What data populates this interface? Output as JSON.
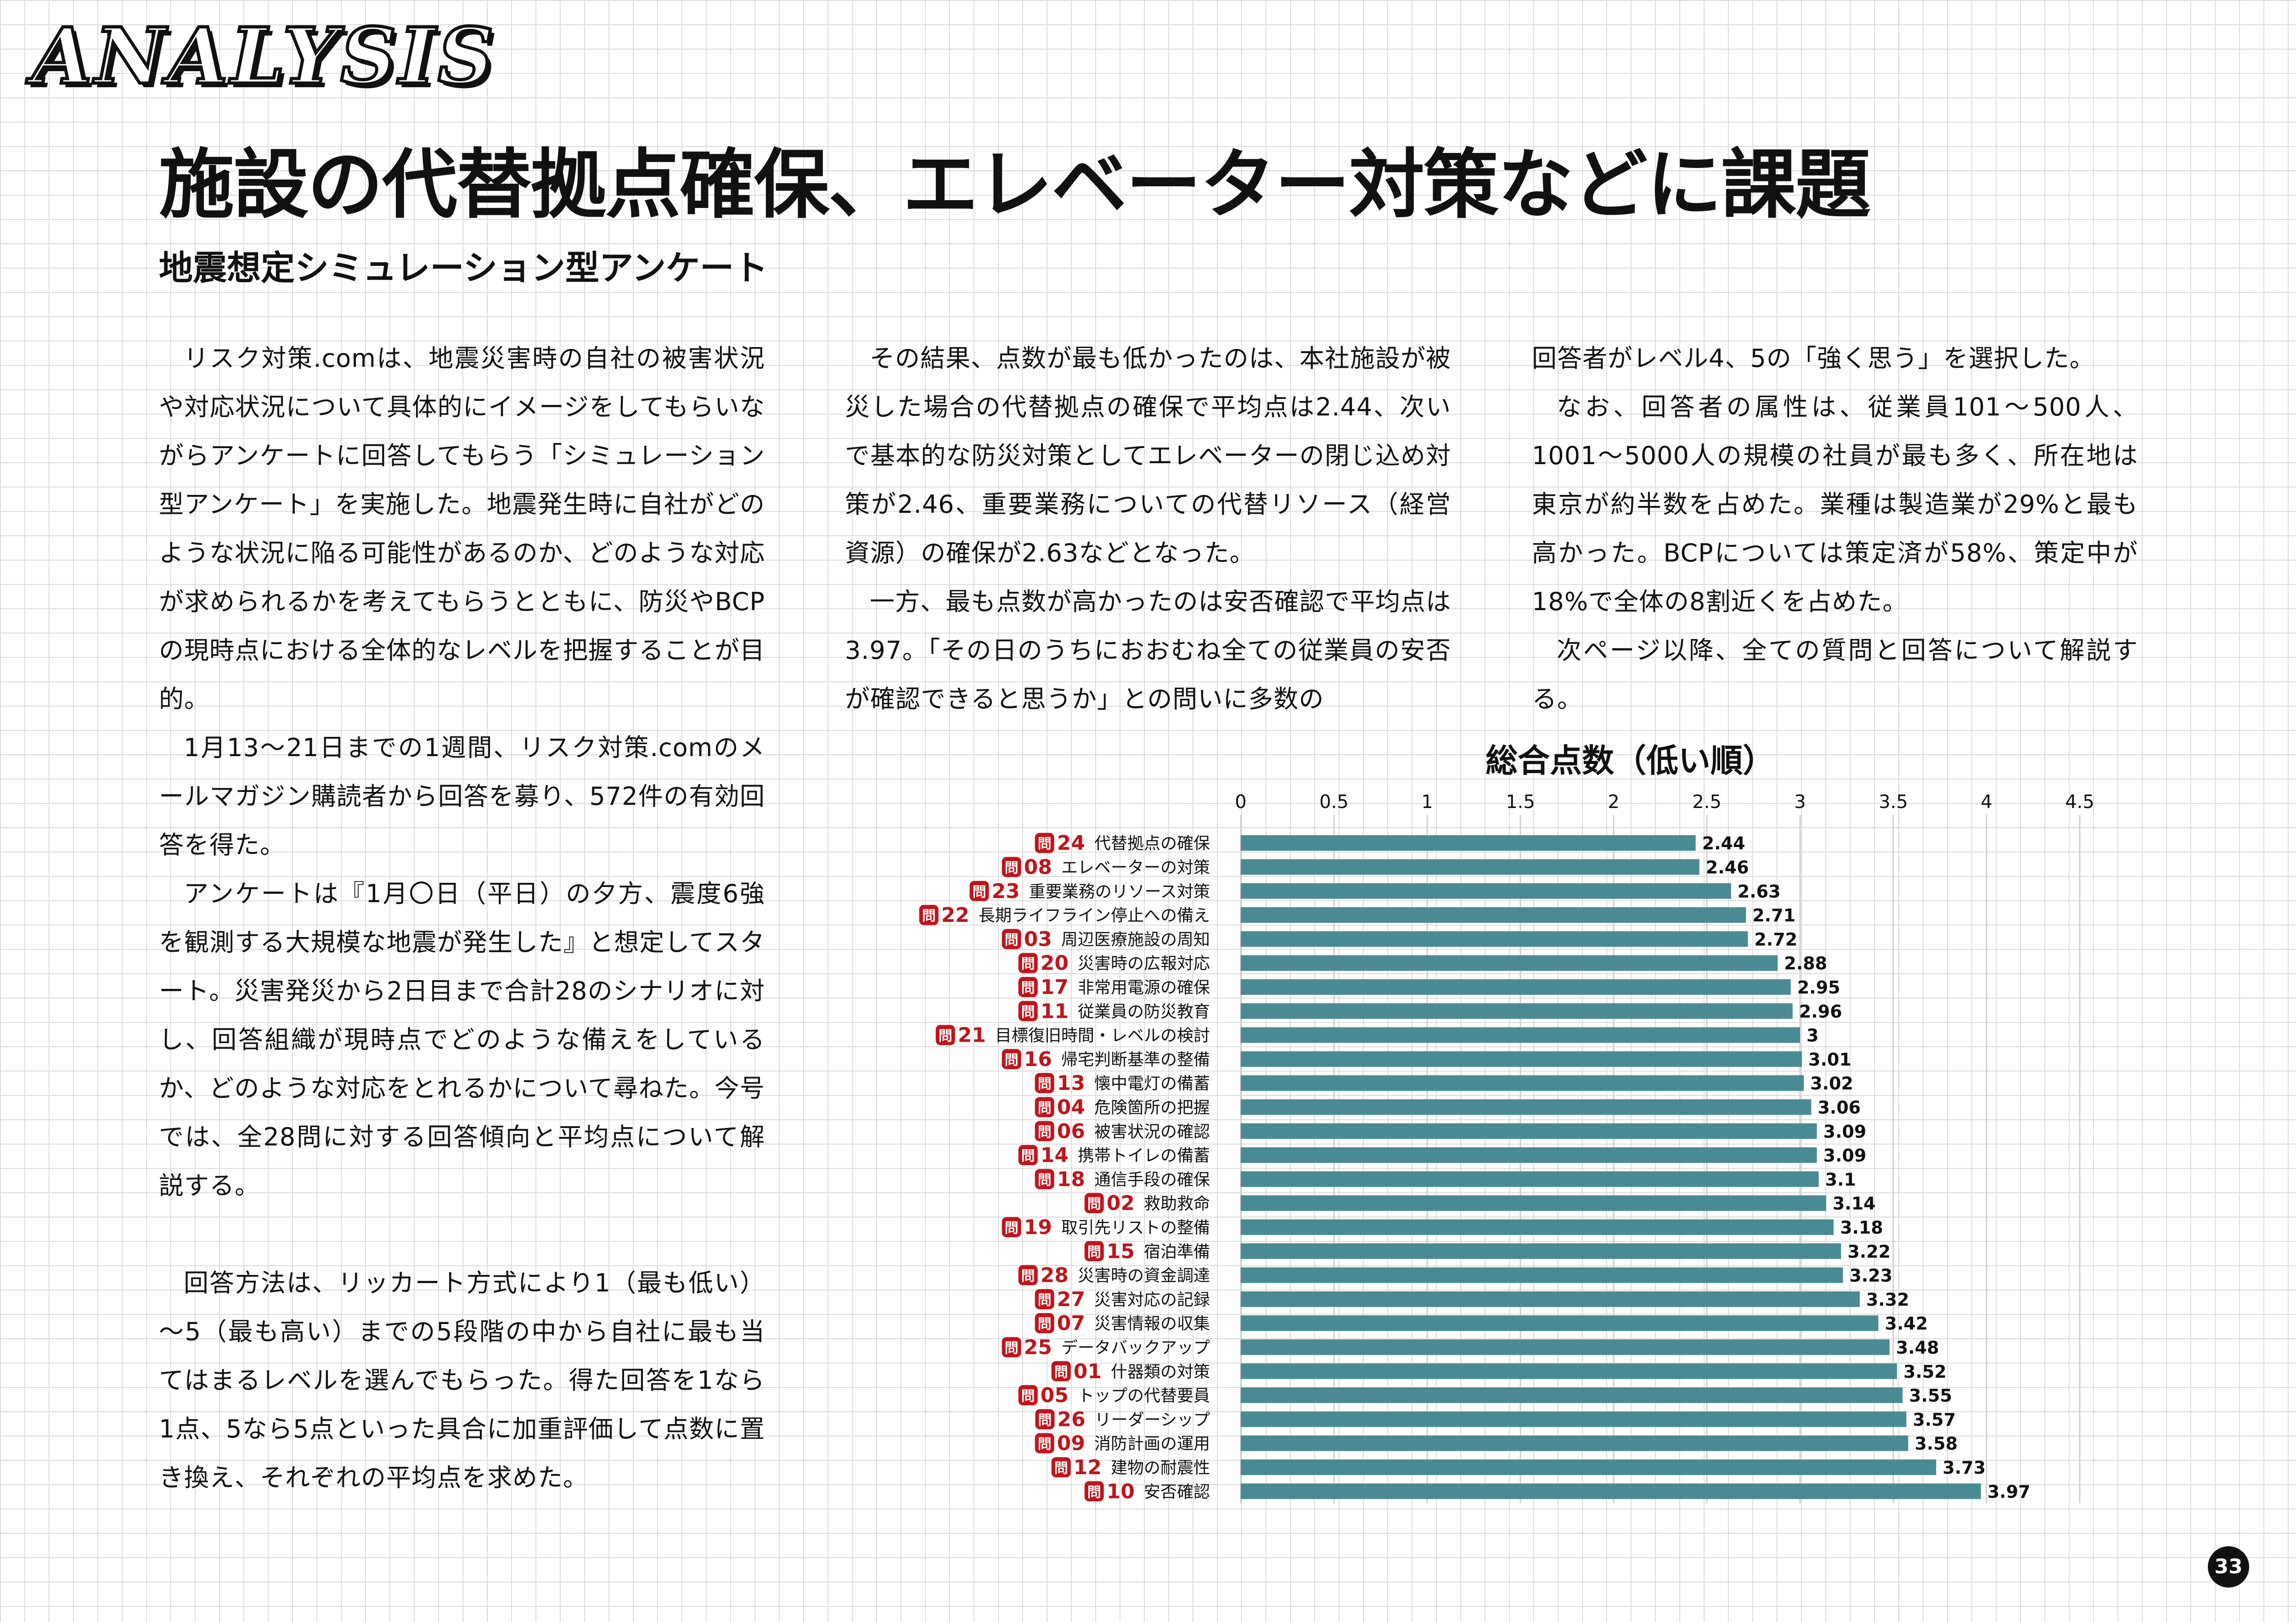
{
  "section_label": "ANALYSIS",
  "headline": "施設の代替拠点確保、エレベーター対策などに課題",
  "subheadline": "地震想定シミュレーション型アンケート",
  "body": {
    "col1": [
      "リスク対策.comは、地震災害時の自社の被害状況や対応状況について具体的にイメージをしてもらいながらアンケートに回答してもらう「シミュレーション型アンケート」を実施した。地震発生時に自社がどのような状況に陥る可能性があるのか、どのような対応が求められるかを考えてもらうとともに、防災やBCPの現時点における全体的なレベルを把握することが目的。",
      "1月13～21日までの1週間、リスク対策.comのメールマガジン購読者から回答を募り、572件の有効回答を得た。",
      "アンケートは『1月〇日（平日）の夕方、震度6強を観測する大規模な地震が発生した』と想定してスタート。災害発災から2日目まで合計28のシナリオに対し、回答組織が現時点でどのような備えをしているか、どのような対応をとれるかについて尋ねた。今号では、全28問に対する回答傾向と平均点について解説する。",
      "回答方法は、リッカート方式により1（最も低い）～5（最も高い）までの5段階の中から自社に最も当てはまるレベルを選んでもらった。得た回答を1なら1点、5なら5点といった具合に加重評価して点数に置き換え、それぞれの平均点を求めた。"
    ],
    "col2": [
      "その結果、点数が最も低かったのは、本社施設が被災した場合の代替拠点の確保で平均点は2.44、次いで基本的な防災対策としてエレベーターの閉じ込め対策が2.46、重要業務についての代替リソース（経営資源）の確保が2.63などとなった。",
      "一方、最も点数が高かったのは安否確認で平均点は3.97。「その日のうちにおおむね全ての従業員の安否が確認できると思うか」との問いに多数の"
    ],
    "col3": [
      "回答者がレベル4、5の「強く思う」を選択した。",
      "なお、回答者の属性は、従業員101～500人、1001～5000人の規模の社員が最も多く、所在地は東京が約半数を占めた。業種は製造業が29%と最も高かった。BCPについては策定済が58%、策定中が18%で全体の8割近くを占めた。",
      "次ページ以降、全ての質問と回答について解説する。"
    ]
  },
  "chart_data": {
    "type": "bar",
    "orientation": "horizontal",
    "title": "総合点数（低い順）",
    "xlim": [
      0,
      4.5
    ],
    "ticks": [
      "0",
      "0.5",
      "1",
      "1.5",
      "2",
      "2.5",
      "3",
      "3.5",
      "4",
      "4.5"
    ],
    "grid": true,
    "question_prefix": "問",
    "bar_color": "#4a8a93",
    "badge_color": "#c0151c",
    "categories": [
      {
        "q": "24",
        "label": "代替拠点の確保",
        "value": 2.44,
        "value_label": "2.44"
      },
      {
        "q": "08",
        "label": "エレベーターの対策",
        "value": 2.46,
        "value_label": "2.46"
      },
      {
        "q": "23",
        "label": "重要業務のリソース対策",
        "value": 2.63,
        "value_label": "2.63"
      },
      {
        "q": "22",
        "label": "長期ライフライン停止への備え",
        "value": 2.71,
        "value_label": "2.71"
      },
      {
        "q": "03",
        "label": "周辺医療施設の周知",
        "value": 2.72,
        "value_label": "2.72"
      },
      {
        "q": "20",
        "label": "災害時の広報対応",
        "value": 2.88,
        "value_label": "2.88"
      },
      {
        "q": "17",
        "label": "非常用電源の確保",
        "value": 2.95,
        "value_label": "2.95"
      },
      {
        "q": "11",
        "label": "従業員の防災教育",
        "value": 2.96,
        "value_label": "2.96"
      },
      {
        "q": "21",
        "label": "目標復旧時間・レベルの検討",
        "value": 3,
        "value_label": "3"
      },
      {
        "q": "16",
        "label": "帰宅判断基準の整備",
        "value": 3.01,
        "value_label": "3.01"
      },
      {
        "q": "13",
        "label": "懐中電灯の備蓄",
        "value": 3.02,
        "value_label": "3.02"
      },
      {
        "q": "04",
        "label": "危険箇所の把握",
        "value": 3.06,
        "value_label": "3.06"
      },
      {
        "q": "06",
        "label": "被害状況の確認",
        "value": 3.09,
        "value_label": "3.09"
      },
      {
        "q": "14",
        "label": "携帯トイレの備蓄",
        "value": 3.09,
        "value_label": "3.09"
      },
      {
        "q": "18",
        "label": "通信手段の確保",
        "value": 3.1,
        "value_label": "3.1"
      },
      {
        "q": "02",
        "label": "救助救命",
        "value": 3.14,
        "value_label": "3.14"
      },
      {
        "q": "19",
        "label": "取引先リストの整備",
        "value": 3.18,
        "value_label": "3.18"
      },
      {
        "q": "15",
        "label": "宿泊準備",
        "value": 3.22,
        "value_label": "3.22"
      },
      {
        "q": "28",
        "label": "災害時の資金調達",
        "value": 3.23,
        "value_label": "3.23"
      },
      {
        "q": "27",
        "label": "災害対応の記録",
        "value": 3.32,
        "value_label": "3.32"
      },
      {
        "q": "07",
        "label": "災害情報の収集",
        "value": 3.42,
        "value_label": "3.42"
      },
      {
        "q": "25",
        "label": "データバックアップ",
        "value": 3.48,
        "value_label": "3.48"
      },
      {
        "q": "01",
        "label": "什器類の対策",
        "value": 3.52,
        "value_label": "3.52"
      },
      {
        "q": "05",
        "label": "トップの代替要員",
        "value": 3.55,
        "value_label": "3.55"
      },
      {
        "q": "26",
        "label": "リーダーシップ",
        "value": 3.57,
        "value_label": "3.57"
      },
      {
        "q": "09",
        "label": "消防計画の運用",
        "value": 3.58,
        "value_label": "3.58"
      },
      {
        "q": "12",
        "label": "建物の耐震性",
        "value": 3.73,
        "value_label": "3.73"
      },
      {
        "q": "10",
        "label": "安否確認",
        "value": 3.97,
        "value_label": "3.97"
      }
    ]
  },
  "page_number": "33"
}
